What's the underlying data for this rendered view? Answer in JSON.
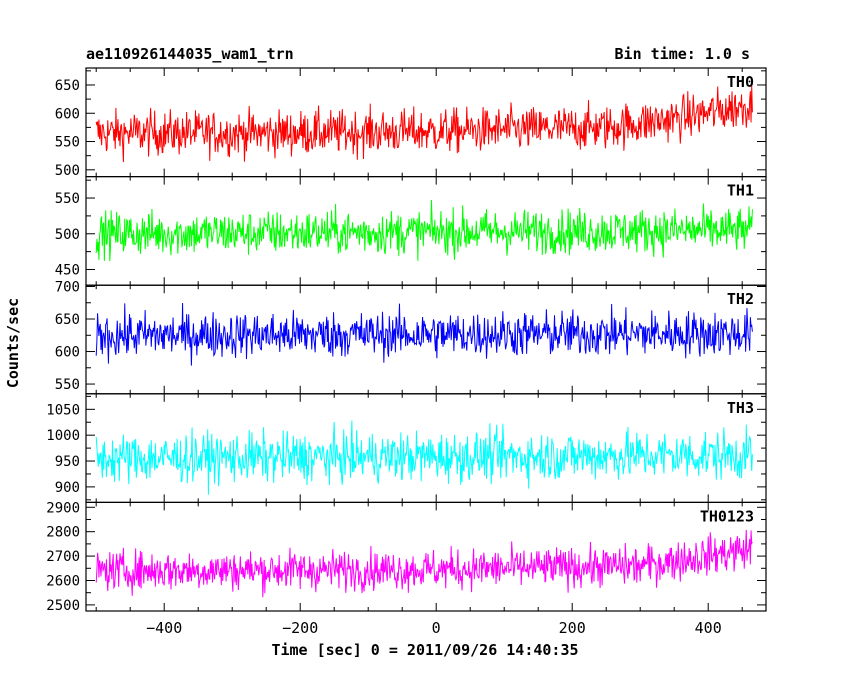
{
  "header": {
    "title": "ae110926144035_wam1_trn",
    "bin_time": "Bin time: 1.0 s"
  },
  "chart_data": {
    "type": "line",
    "xlabel": "Time [sec] 0 = 2011/09/26 14:40:35",
    "ylabel": "Counts/sec",
    "xlim": [
      -515,
      485
    ],
    "x_ticks": [
      -400,
      -200,
      0,
      200,
      400
    ],
    "x_range": [
      -500,
      465
    ],
    "bin_time_s": 1.0,
    "panels": [
      {
        "name": "TH0",
        "color": "#ff0000",
        "ylim": [
          488,
          680
        ],
        "ticks": [
          500,
          550,
          600,
          650
        ],
        "profile": [
          [
            -500,
            565
          ],
          [
            -250,
            565
          ],
          [
            0,
            568
          ],
          [
            250,
            575
          ],
          [
            350,
            590
          ],
          [
            465,
            615
          ]
        ],
        "noise": 28
      },
      {
        "name": "TH1",
        "color": "#00ff00",
        "ylim": [
          428,
          580
        ],
        "ticks": [
          450,
          500,
          550
        ],
        "profile": [
          [
            -500,
            500
          ],
          [
            465,
            505
          ]
        ],
        "noise": 22
      },
      {
        "name": "TH2",
        "color": "#0000ff",
        "ylim": [
          535,
          702
        ],
        "ticks": [
          550,
          600,
          650,
          700
        ],
        "profile": [
          [
            -500,
            625
          ],
          [
            465,
            628
          ]
        ],
        "noise": 25
      },
      {
        "name": "TH3",
        "color": "#00ffff",
        "ylim": [
          870,
          1080
        ],
        "ticks": [
          900,
          950,
          1000,
          1050
        ],
        "profile": [
          [
            -500,
            955
          ],
          [
            465,
            962
          ]
        ],
        "noise": 34
      },
      {
        "name": "TH0123",
        "color": "#ff00ff",
        "ylim": [
          2475,
          2920
        ],
        "ticks": [
          2500,
          2600,
          2700,
          2800,
          2900
        ],
        "profile": [
          [
            -500,
            2640
          ],
          [
            0,
            2645
          ],
          [
            300,
            2660
          ],
          [
            465,
            2730
          ]
        ],
        "noise": 58
      }
    ]
  }
}
